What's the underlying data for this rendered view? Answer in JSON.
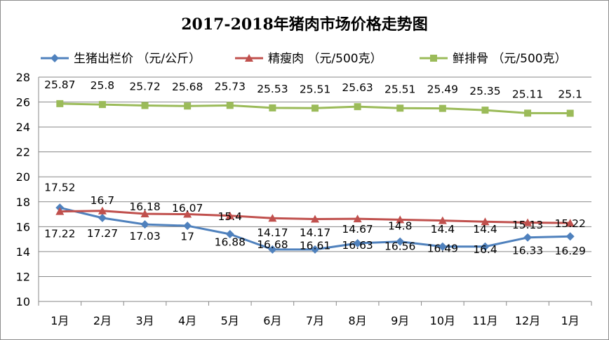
{
  "chart_data": {
    "type": "line",
    "title": "2017-2018年猪肉市场价格走势图",
    "categories": [
      "1月",
      "2月",
      "3月",
      "4月",
      "5月",
      "6月",
      "7月",
      "8月",
      "9月",
      "10月",
      "11月",
      "12月",
      "1月"
    ],
    "ylim": [
      10,
      28
    ],
    "yticks": [
      10,
      12,
      14,
      16,
      18,
      20,
      22,
      24,
      26,
      28
    ],
    "grid": true,
    "legend_position": "top",
    "series": [
      {
        "name": "生猪出栏价 （元/公斤）",
        "color": "#4f81bd",
        "marker": "diamond",
        "values": [
          17.52,
          16.7,
          16.18,
          16.07,
          15.4,
          14.17,
          14.17,
          14.67,
          14.8,
          14.4,
          14.4,
          15.13,
          15.22
        ]
      },
      {
        "name": "精瘦肉 （元/500克）",
        "color": "#c0504d",
        "marker": "triangle",
        "values": [
          17.22,
          17.27,
          17.03,
          17,
          16.88,
          16.68,
          16.61,
          16.63,
          16.56,
          16.49,
          16.4,
          16.33,
          16.29
        ]
      },
      {
        "name": "鲜排骨 （元/500克）",
        "color": "#9bbb59",
        "marker": "square",
        "values": [
          25.87,
          25.8,
          25.72,
          25.68,
          25.73,
          25.53,
          25.51,
          25.63,
          25.51,
          25.49,
          25.35,
          25.11,
          25.1
        ]
      }
    ],
    "data_labels": [
      {
        "series": 0,
        "labels": [
          "17.52",
          "16.7",
          "16.18",
          "16.07",
          "15.4",
          "14.17",
          "14.17",
          "14.67",
          "14.8",
          "14.4",
          "14.4",
          "15.13",
          "15.22"
        ]
      },
      {
        "series": 1,
        "labels": [
          "17.22",
          "17.27",
          "17.03",
          "17",
          "16.88",
          "16.68",
          "16.61",
          "16.63",
          "16.56",
          "16.49",
          "16.4",
          "16.33",
          "16.29"
        ]
      },
      {
        "series": 2,
        "labels": [
          "25.87",
          "25.8",
          "25.72",
          "25.68",
          "25.73",
          "25.53",
          "25.51",
          "25.63",
          "25.51",
          "25.49",
          "25.35",
          "25.11",
          "25.1"
        ]
      }
    ]
  }
}
